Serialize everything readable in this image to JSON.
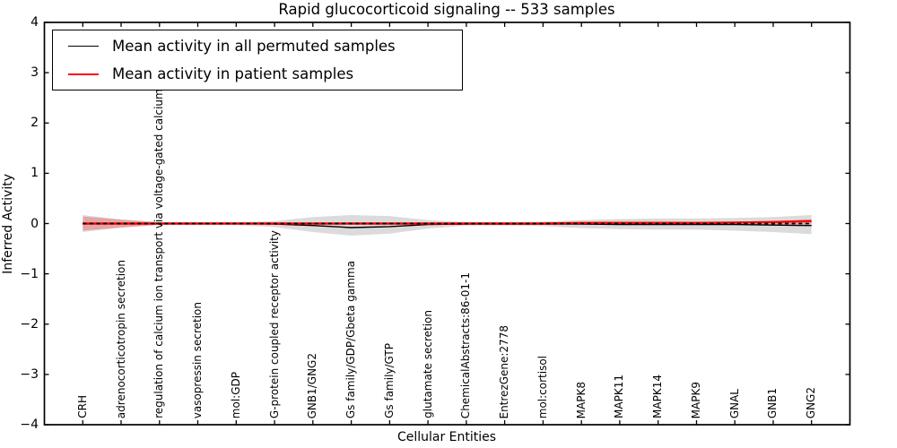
{
  "chart_data": {
    "type": "line",
    "title": "Rapid glucocorticoid signaling -- 533 samples",
    "xlabel": "Cellular Entities",
    "ylabel": "Inferred Activity",
    "ylim": [
      -4,
      4
    ],
    "yticks": [
      4,
      3,
      2,
      1,
      0,
      -1,
      -2,
      -3,
      -4
    ],
    "ytick_labels": [
      "4",
      "3",
      "2",
      "1",
      "0",
      "−1",
      "−2",
      "−3",
      "−4"
    ],
    "grid": false,
    "x_tick_rotation": 90,
    "categories": [
      "CRH",
      "adrenocorticotropin secretion",
      "regulation of calcium ion transport via voltage-gated calcium channel",
      "vasopressin secretion",
      "mol:GDP",
      "G-protein coupled receptor activity",
      "GNB1/GNG2",
      "Gs family/GDP/Gbeta gamma",
      "Gs family/GTP",
      "glutamate secretion",
      "ChemicalAbstracts:86-01-1",
      "EntrezGene:2778",
      "mol:cortisol",
      "MAPK8",
      "MAPK11",
      "MAPK14",
      "MAPK9",
      "GNAL",
      "GNB1",
      "GNG2"
    ],
    "series": [
      {
        "key": "permuted",
        "name": "Mean activity in all permuted samples",
        "color": "#000000",
        "style": "solid",
        "line_width": 1.4,
        "band_color": "rgba(0,0,0,0.14)",
        "values": [
          0.0,
          0.0,
          0.0,
          0.0,
          0.0,
          -0.01,
          -0.04,
          -0.08,
          -0.06,
          -0.02,
          -0.01,
          -0.01,
          -0.01,
          -0.01,
          -0.02,
          -0.02,
          -0.02,
          -0.02,
          -0.03,
          -0.04
        ],
        "band_upper": [
          0.17,
          0.08,
          0.03,
          0.03,
          0.03,
          0.05,
          0.13,
          0.17,
          0.15,
          0.07,
          0.03,
          0.03,
          0.04,
          0.07,
          0.09,
          0.1,
          0.1,
          0.11,
          0.13,
          0.17
        ],
        "band_lower": [
          -0.17,
          -0.08,
          -0.03,
          -0.03,
          -0.03,
          -0.07,
          -0.17,
          -0.24,
          -0.2,
          -0.1,
          -0.04,
          -0.04,
          -0.05,
          -0.09,
          -0.11,
          -0.12,
          -0.12,
          -0.14,
          -0.17,
          -0.21
        ]
      },
      {
        "key": "patient",
        "name": "Mean activity in patient samples",
        "color": "#ff0000",
        "style": "solid",
        "line_width": 2.4,
        "band_color": "rgba(255,0,0,0.24)",
        "values": [
          0.0,
          0.0,
          0.0,
          0.0,
          0.0,
          0.0,
          0.0,
          0.0,
          0.0,
          0.0,
          0.0,
          0.0,
          0.0,
          0.01,
          0.01,
          0.01,
          0.01,
          0.02,
          0.03,
          0.05
        ],
        "band_upper": [
          0.14,
          0.08,
          0.02,
          0.01,
          0.01,
          0.01,
          0.01,
          0.01,
          0.01,
          0.01,
          0.01,
          0.01,
          0.02,
          0.04,
          0.05,
          0.05,
          0.04,
          0.04,
          0.05,
          0.08
        ],
        "band_lower": [
          -0.14,
          -0.08,
          -0.02,
          -0.01,
          -0.01,
          -0.01,
          -0.01,
          -0.01,
          -0.01,
          -0.01,
          -0.01,
          -0.01,
          -0.02,
          -0.02,
          -0.02,
          -0.02,
          -0.02,
          -0.02,
          -0.02,
          -0.02
        ]
      },
      {
        "key": "zero",
        "name": "zero reference line",
        "color": "#000000",
        "style": "dashed",
        "line_width": 1.7,
        "values": [
          0,
          0,
          0,
          0,
          0,
          0,
          0,
          0,
          0,
          0,
          0,
          0,
          0,
          0,
          0,
          0,
          0,
          0,
          0,
          0
        ]
      }
    ],
    "legend": {
      "position": "upper left",
      "entries": [
        {
          "label": "Mean activity in all permuted samples",
          "color": "#000000"
        },
        {
          "label": "Mean activity in patient samples",
          "color": "#ff0000"
        }
      ]
    }
  }
}
